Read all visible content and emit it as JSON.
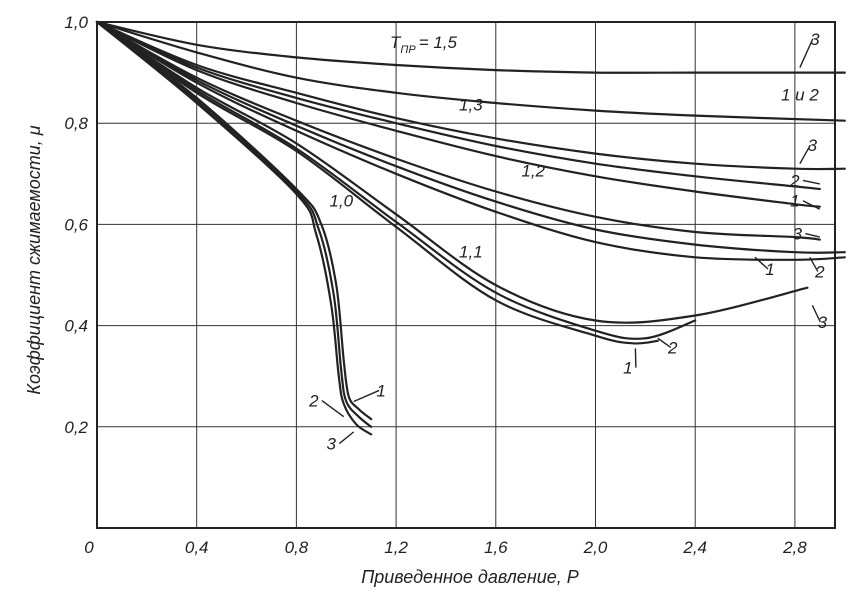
{
  "chart_data": {
    "type": "line",
    "xlabel": "Приведенное давление, P",
    "ylabel": "Коэффициент сжимаемости, μ",
    "xlim": [
      0,
      3.0
    ],
    "ylim": [
      0,
      1.0
    ],
    "grid": true,
    "x_ticks": [
      "0",
      "0,4",
      "0,8",
      "1,2",
      "1,6",
      "2,0",
      "2,4",
      "2,8"
    ],
    "y_ticks": [
      "0,2",
      "0,4",
      "0,6",
      "0,8",
      "1,0"
    ],
    "annotation_T": {
      "T": "T",
      "sub": "ПР",
      "rest": "= 1,5"
    },
    "temperature_labels": [
      {
        "text": "1,3",
        "x": 1.5,
        "y": 0.825
      },
      {
        "text": "1,2",
        "x": 1.75,
        "y": 0.695
      },
      {
        "text": "1,1",
        "x": 1.5,
        "y": 0.535
      },
      {
        "text": "1,0",
        "x": 0.98,
        "y": 0.635
      }
    ],
    "series": [
      {
        "name": "1,5 — 3",
        "points": [
          [
            0,
            1.0
          ],
          [
            0.4,
            0.955
          ],
          [
            0.8,
            0.93
          ],
          [
            1.2,
            0.915
          ],
          [
            1.6,
            0.905
          ],
          [
            2.0,
            0.9
          ],
          [
            2.4,
            0.9
          ],
          [
            3.0,
            0.9
          ]
        ]
      },
      {
        "name": "1,5 — 1 и 2",
        "points": [
          [
            0,
            1.0
          ],
          [
            0.4,
            0.94
          ],
          [
            0.8,
            0.89
          ],
          [
            1.2,
            0.86
          ],
          [
            1.6,
            0.84
          ],
          [
            2.0,
            0.825
          ],
          [
            2.4,
            0.815
          ],
          [
            3.0,
            0.805
          ]
        ]
      },
      {
        "name": "1,3 — 3",
        "points": [
          [
            0,
            1.0
          ],
          [
            0.4,
            0.915
          ],
          [
            0.8,
            0.86
          ],
          [
            1.2,
            0.81
          ],
          [
            1.6,
            0.77
          ],
          [
            2.0,
            0.74
          ],
          [
            2.4,
            0.72
          ],
          [
            2.8,
            0.71
          ],
          [
            3.0,
            0.71
          ]
        ]
      },
      {
        "name": "1,3 — 2",
        "points": [
          [
            0,
            1.0
          ],
          [
            0.4,
            0.91
          ],
          [
            0.8,
            0.85
          ],
          [
            1.2,
            0.8
          ],
          [
            1.6,
            0.755
          ],
          [
            2.0,
            0.72
          ],
          [
            2.4,
            0.695
          ],
          [
            2.8,
            0.675
          ],
          [
            2.9,
            0.67
          ]
        ]
      },
      {
        "name": "1,3 — 1",
        "points": [
          [
            0,
            1.0
          ],
          [
            0.4,
            0.905
          ],
          [
            0.8,
            0.84
          ],
          [
            1.2,
            0.785
          ],
          [
            1.6,
            0.735
          ],
          [
            2.0,
            0.695
          ],
          [
            2.4,
            0.665
          ],
          [
            2.8,
            0.64
          ],
          [
            2.9,
            0.635
          ]
        ]
      },
      {
        "name": "1,2 — 3",
        "points": [
          [
            0,
            1.0
          ],
          [
            0.4,
            0.89
          ],
          [
            0.8,
            0.805
          ],
          [
            1.2,
            0.73
          ],
          [
            1.6,
            0.665
          ],
          [
            2.0,
            0.615
          ],
          [
            2.4,
            0.585
          ],
          [
            2.8,
            0.575
          ],
          [
            2.9,
            0.57
          ]
        ]
      },
      {
        "name": "1,2 — 2",
        "points": [
          [
            0,
            1.0
          ],
          [
            0.4,
            0.885
          ],
          [
            0.8,
            0.795
          ],
          [
            1.2,
            0.715
          ],
          [
            1.6,
            0.645
          ],
          [
            2.0,
            0.59
          ],
          [
            2.4,
            0.56
          ],
          [
            2.8,
            0.545
          ],
          [
            3.0,
            0.545
          ]
        ]
      },
      {
        "name": "1,2 — 1",
        "points": [
          [
            0,
            1.0
          ],
          [
            0.4,
            0.88
          ],
          [
            0.8,
            0.785
          ],
          [
            1.2,
            0.7
          ],
          [
            1.6,
            0.625
          ],
          [
            2.0,
            0.565
          ],
          [
            2.4,
            0.535
          ],
          [
            2.8,
            0.53
          ],
          [
            3.0,
            0.535
          ]
        ]
      },
      {
        "name": "1,1 — 3",
        "points": [
          [
            0,
            1.0
          ],
          [
            0.4,
            0.87
          ],
          [
            0.8,
            0.76
          ],
          [
            1.2,
            0.62
          ],
          [
            1.6,
            0.48
          ],
          [
            2.0,
            0.41
          ],
          [
            2.4,
            0.42
          ],
          [
            2.85,
            0.475
          ]
        ]
      },
      {
        "name": "1,1 — 2",
        "points": [
          [
            0,
            1.0
          ],
          [
            0.4,
            0.865
          ],
          [
            0.8,
            0.75
          ],
          [
            1.2,
            0.605
          ],
          [
            1.6,
            0.465
          ],
          [
            2.0,
            0.39
          ],
          [
            2.2,
            0.375
          ],
          [
            2.4,
            0.41
          ]
        ]
      },
      {
        "name": "1,1 — 1",
        "points": [
          [
            0,
            1.0
          ],
          [
            0.4,
            0.86
          ],
          [
            0.8,
            0.745
          ],
          [
            1.2,
            0.595
          ],
          [
            1.6,
            0.45
          ],
          [
            2.0,
            0.38
          ],
          [
            2.15,
            0.365
          ],
          [
            2.25,
            0.37
          ]
        ]
      },
      {
        "name": "1,0 — 1",
        "points": [
          [
            0,
            1.0
          ],
          [
            0.4,
            0.85
          ],
          [
            0.8,
            0.67
          ],
          [
            0.9,
            0.6
          ],
          [
            0.96,
            0.48
          ],
          [
            0.99,
            0.33
          ],
          [
            1.01,
            0.26
          ],
          [
            1.05,
            0.235
          ],
          [
            1.1,
            0.215
          ]
        ]
      },
      {
        "name": "1,0 — 2",
        "points": [
          [
            0,
            1.0
          ],
          [
            0.4,
            0.845
          ],
          [
            0.8,
            0.665
          ],
          [
            0.89,
            0.59
          ],
          [
            0.95,
            0.46
          ],
          [
            0.98,
            0.31
          ],
          [
            1.0,
            0.25
          ],
          [
            1.05,
            0.22
          ],
          [
            1.1,
            0.2
          ]
        ]
      },
      {
        "name": "1,0 — 3",
        "points": [
          [
            0,
            1.0
          ],
          [
            0.4,
            0.84
          ],
          [
            0.8,
            0.66
          ],
          [
            0.88,
            0.58
          ],
          [
            0.94,
            0.44
          ],
          [
            0.97,
            0.3
          ],
          [
            0.99,
            0.245
          ],
          [
            1.04,
            0.205
          ],
          [
            1.1,
            0.185
          ]
        ]
      }
    ],
    "curve_number_labels": [
      {
        "text": "3",
        "x": 2.88,
        "y": 0.955,
        "lx": 2.82,
        "ly": 0.91
      },
      {
        "text": "1 и 2",
        "x": 2.82,
        "y": 0.845
      },
      {
        "text": "3",
        "x": 2.87,
        "y": 0.745,
        "lx": 2.82,
        "ly": 0.72
      },
      {
        "text": "2",
        "x": 2.8,
        "y": 0.675,
        "lx": 2.9,
        "ly": 0.68
      },
      {
        "text": "1",
        "x": 2.8,
        "y": 0.635,
        "lx": 2.9,
        "ly": 0.63
      },
      {
        "text": "3",
        "x": 2.81,
        "y": 0.57,
        "lx": 2.9,
        "ly": 0.575
      },
      {
        "text": "2",
        "x": 2.9,
        "y": 0.495,
        "lx": 2.86,
        "ly": 0.535
      },
      {
        "text": "1",
        "x": 2.7,
        "y": 0.5,
        "lx": 2.64,
        "ly": 0.535
      },
      {
        "text": "3",
        "x": 2.91,
        "y": 0.395,
        "lx": 2.87,
        "ly": 0.44
      },
      {
        "text": "2",
        "x": 2.31,
        "y": 0.345,
        "lx": 2.25,
        "ly": 0.375
      },
      {
        "text": "1",
        "x": 2.13,
        "y": 0.305,
        "lx": 2.16,
        "ly": 0.355
      },
      {
        "text": "1",
        "x": 1.14,
        "y": 0.26,
        "lx": 1.03,
        "ly": 0.25
      },
      {
        "text": "2",
        "x": 0.87,
        "y": 0.24,
        "lx": 0.99,
        "ly": 0.22
      },
      {
        "text": "3",
        "x": 0.94,
        "y": 0.155,
        "lx": 1.03,
        "ly": 0.19
      }
    ]
  }
}
